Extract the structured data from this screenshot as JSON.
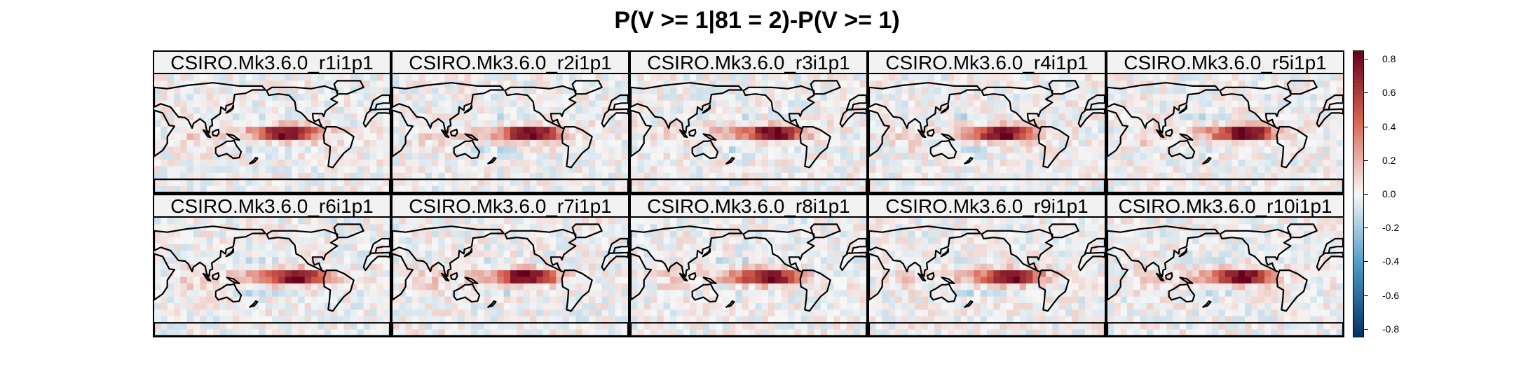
{
  "chart_data": {
    "type": "heatmap",
    "title": "P(V >= 1|81 = 2)-P(V >= 1)",
    "panels": [
      {
        "label": "CSIRO.Mk3.6.0_r1i1p1"
      },
      {
        "label": "CSIRO.Mk3.6.0_r2i1p1"
      },
      {
        "label": "CSIRO.Mk3.6.0_r3i1p1"
      },
      {
        "label": "CSIRO.Mk3.6.0_r4i1p1"
      },
      {
        "label": "CSIRO.Mk3.6.0_r5i1p1"
      },
      {
        "label": "CSIRO.Mk3.6.0_r6i1p1"
      },
      {
        "label": "CSIRO.Mk3.6.0_r7i1p1"
      },
      {
        "label": "CSIRO.Mk3.6.0_r8i1p1"
      },
      {
        "label": "CSIRO.Mk3.6.0_r9i1p1"
      },
      {
        "label": "CSIRO.Mk3.6.0_r10i1p1"
      }
    ],
    "layout": {
      "rows": 2,
      "columns": 5
    },
    "colorbar": {
      "range": [
        -0.85,
        0.85
      ],
      "ticks": [
        0.8,
        0.6,
        0.4,
        0.2,
        0.0,
        -0.2,
        -0.4,
        -0.6,
        -0.8
      ],
      "tick_labels": [
        "0.8",
        "0.6",
        "0.4",
        "0.2",
        "0.0",
        "-0.2",
        "-0.4",
        "-0.6",
        "-0.8"
      ],
      "colormap": "diverging red-white-blue",
      "colors": {
        "max": "#67001f",
        "high": "#d6604d",
        "mid": "#f7f7f7",
        "low": "#4393c3",
        "min": "#053061"
      }
    }
  }
}
